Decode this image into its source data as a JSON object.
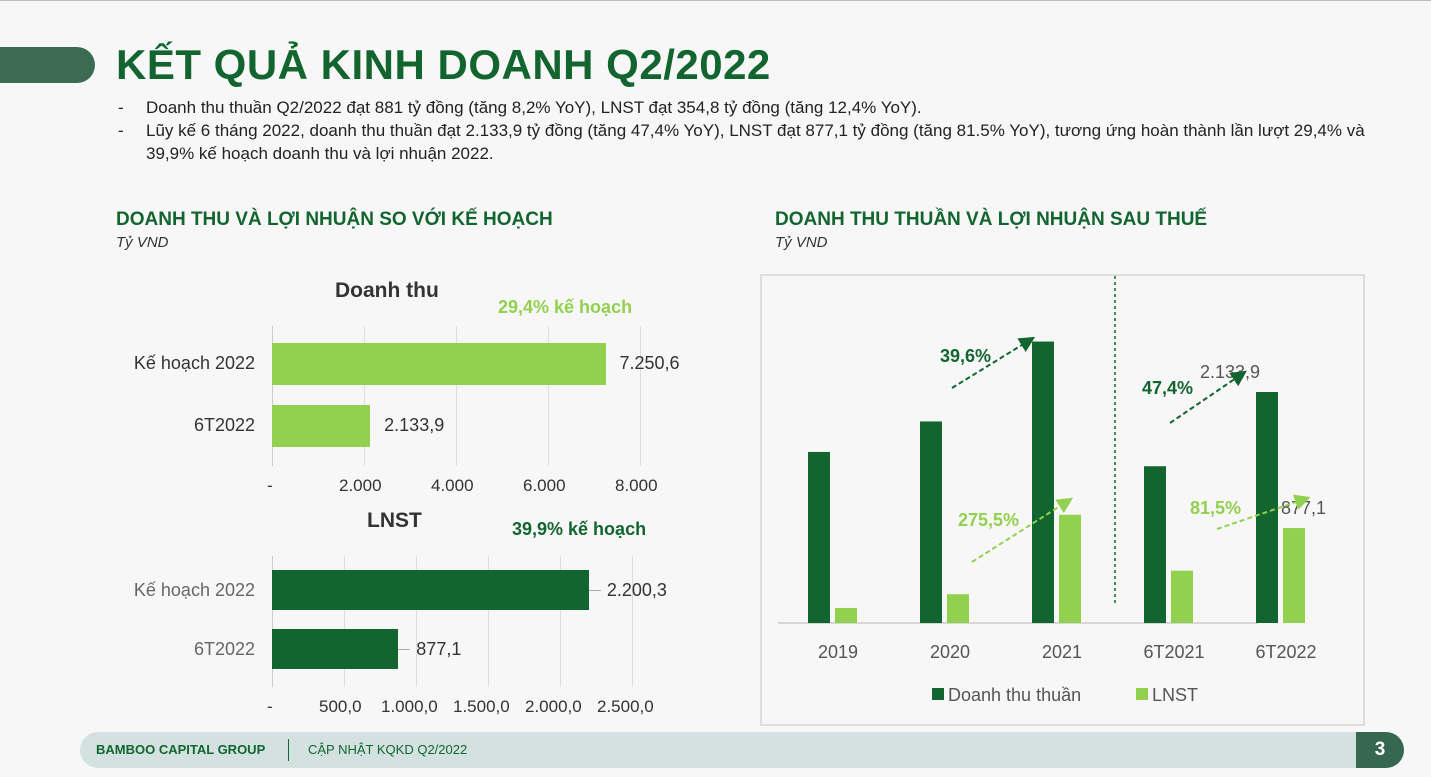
{
  "title": "KẾT QUẢ KINH DOANH Q2/2022",
  "bullets": [
    "Doanh thu thuần Q2/2022 đạt 881 tỷ đồng (tăng 8,2% YoY), LNST đạt 354,8 tỷ đồng (tăng 12,4% YoY).",
    "Lũy kế 6 tháng 2022, doanh thu thuần đạt 2.133,9 tỷ đồng (tăng 47,4% YoY), LNST đạt 877,1 tỷ đồng (tăng 81.5% YoY), tương ứng hoàn thành lần lượt 29,4% và 39,9% kế hoạch doanh thu và lợi nhuận 2022."
  ],
  "bullet_dash": "-",
  "left_section": {
    "title": "DOANH THU VÀ LỢI NHUẬN SO VỚI KẾ HOẠCH",
    "unit": "Tỷ VND"
  },
  "right_section": {
    "title": "DOANH THU THUẦN VÀ LỢI NHUẬN SAU THUẾ",
    "unit": "Tỷ VND"
  },
  "colors": {
    "dark": "#12652f",
    "light": "#92d050"
  },
  "chart_data": [
    {
      "type": "bar",
      "orientation": "horizontal",
      "title": "Doanh thu",
      "annotation": "29,4% kế hoạch",
      "categories": [
        "Kế hoạch 2022",
        "6T2022"
      ],
      "values": [
        7250.6,
        2133.9
      ],
      "value_labels": [
        "7.250,6",
        "2.133,9"
      ],
      "xlim": [
        0,
        8000
      ],
      "xticks": [
        "-",
        "2.000",
        "4.000",
        "6.000",
        "8.000"
      ],
      "color": "#92d050"
    },
    {
      "type": "bar",
      "orientation": "horizontal",
      "title": "LNST",
      "annotation": "39,9% kế hoạch",
      "categories": [
        "Kế hoạch 2022",
        "6T2022"
      ],
      "values": [
        2200.3,
        877.1
      ],
      "value_labels": [
        "2.200,3",
        "877,1"
      ],
      "xlim": [
        0,
        2500
      ],
      "xticks": [
        "-",
        "500,0",
        "1.000,0",
        "1.500,0",
        "2.000,0",
        "2.500,0"
      ],
      "color": "#12652f"
    },
    {
      "type": "bar",
      "orientation": "vertical",
      "categories": [
        "2019",
        "2020",
        "2021",
        "6T2021",
        "6T2022"
      ],
      "series": [
        {
          "name": "Doanh thu thuần",
          "values": [
            1580,
            1862,
            2600,
            1448,
            2133.9
          ],
          "color": "#12652f"
        },
        {
          "name": "LNST",
          "values": [
            139,
            266,
            1000,
            483,
            877.1
          ],
          "color": "#92d050"
        }
      ],
      "data_labels": {
        "6T2022_dt": "2.133,9",
        "6T2022_lnst": "877,1"
      },
      "growth_annotations": [
        "39,6%",
        "275,5%",
        "47,4%",
        "81,5%"
      ],
      "ylim": [
        0,
        2650
      ],
      "legend": "bottom"
    }
  ],
  "footer": {
    "company": "BAMBOO CAPITAL GROUP",
    "subtitle": "CẬP NHẬT KQKD Q2/2022",
    "page": "3"
  }
}
